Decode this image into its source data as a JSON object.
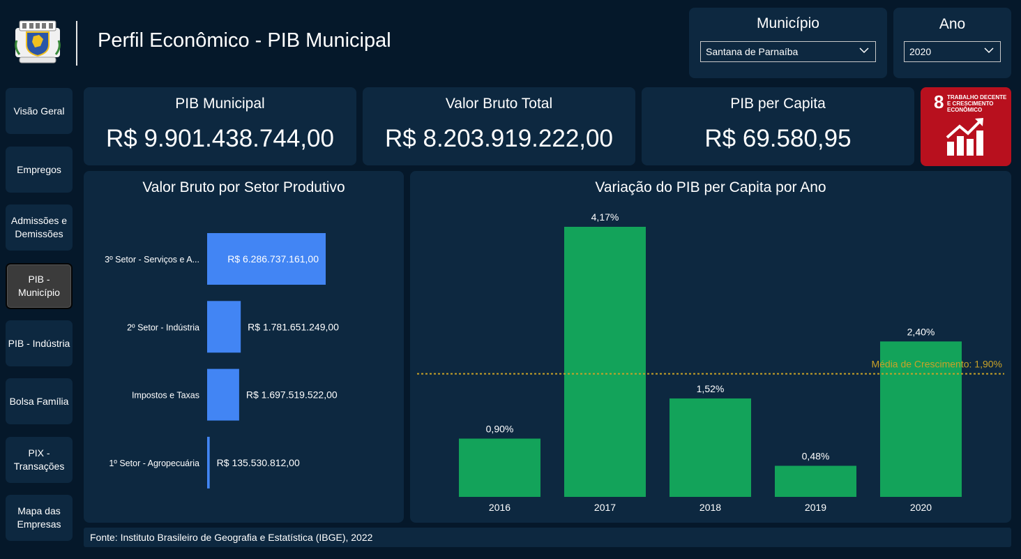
{
  "header": {
    "title": "Perfil Econômico - PIB Municipal"
  },
  "filters": {
    "municipio": {
      "title": "Município",
      "value": "Santana de Parnaíba"
    },
    "ano": {
      "title": "Ano",
      "value": "2020"
    }
  },
  "sidebar": {
    "items": [
      {
        "label": "Visão Geral",
        "active": false
      },
      {
        "label": "Empregos",
        "active": false
      },
      {
        "label": "Admissões e Demissões",
        "active": false
      },
      {
        "label": "PIB - Município",
        "active": true
      },
      {
        "label": "PIB - Indústria",
        "active": false
      },
      {
        "label": "Bolsa Família",
        "active": false
      },
      {
        "label": "PIX - Transações",
        "active": false
      },
      {
        "label": "Mapa das Empresas",
        "active": false
      }
    ]
  },
  "kpis": [
    {
      "label": "PIB Municipal",
      "value": "R$ 9.901.438.744,00"
    },
    {
      "label": "Valor Bruto Total",
      "value": "R$ 8.203.919.222,00"
    },
    {
      "label": "PIB per Capita",
      "value": "R$ 69.580,95"
    }
  ],
  "sdg": {
    "number": "8",
    "line1": "TRABALHO DECENTE",
    "line2": "E CRESCIMENTO",
    "line3": "ECONÔMICO",
    "color": "#b8101e"
  },
  "colors": {
    "background": "#05182a",
    "panel": "#0d2840",
    "bar_blue": "#4285f4",
    "bar_green": "#13a35a",
    "avg_line": "#c9a227"
  },
  "chart_data": [
    {
      "type": "bar",
      "orientation": "horizontal",
      "title": "Valor Bruto por Setor Produtivo",
      "categories": [
        "3º Setor - Serviços e A...",
        "2º Setor - Indústria",
        "Impostos e Taxas",
        "1º Setor - Agropecuária"
      ],
      "values": [
        6286737161.0,
        1781651249.0,
        1697519522.0,
        135530812.0
      ],
      "data_labels": [
        "R$ 6.286.737.161,00",
        "R$ 1.781.651.249,00",
        "R$ 1.697.519.522,00",
        "R$ 135.530.812,00"
      ],
      "xlim": [
        0,
        6286737161.0
      ]
    },
    {
      "type": "bar",
      "title": "Variação do PIB per Capita por Ano",
      "categories": [
        "2016",
        "2017",
        "2018",
        "2019",
        "2020"
      ],
      "values": [
        0.9,
        4.17,
        1.52,
        0.48,
        2.4
      ],
      "data_labels": [
        "0,90%",
        "4,17%",
        "1,52%",
        "0,48%",
        "2,40%"
      ],
      "ylim": [
        0,
        4.17
      ],
      "reference_line": {
        "value": 1.9,
        "label": "Média de Crescimento: 1,90%"
      }
    }
  ],
  "footer": {
    "source": "Fonte: Instituto Brasileiro de Geografia e Estatística (IBGE), 2022"
  }
}
